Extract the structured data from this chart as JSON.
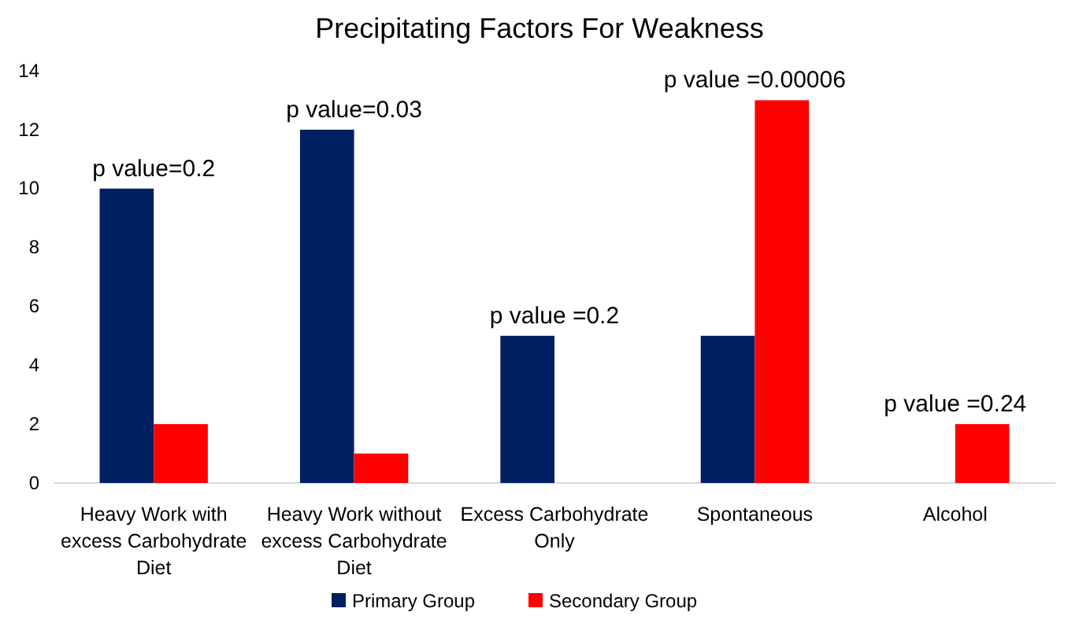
{
  "chart_data": {
    "type": "bar",
    "title": "Precipitating Factors For Weakness",
    "categories": [
      "Heavy Work with excess Carbohydrate Diet",
      "Heavy Work without excess Carbohydrate Diet",
      "Excess Carbohydrate Only",
      "Spontaneous",
      "Alcohol"
    ],
    "series": [
      {
        "name": "Primary Group",
        "color": "#002060",
        "values": [
          10,
          12,
          5,
          5,
          null
        ]
      },
      {
        "name": "Secondary Group",
        "color": "#ff0000",
        "values": [
          2,
          1,
          null,
          13,
          2
        ]
      }
    ],
    "ylim": [
      0,
      14
    ],
    "yticks": [
      0,
      2,
      4,
      6,
      8,
      10,
      12,
      14
    ],
    "grid": false,
    "legend": "bottom",
    "annotations": [
      {
        "text": "p value=0.2",
        "x": "Heavy Work with excess Carbohydrate Diet",
        "y": 10
      },
      {
        "text": "p value=0.03",
        "x": "Heavy Work without excess Carbohydrate Diet",
        "y": 12
      },
      {
        "text": "p value =0.2",
        "x": "Excess Carbohydrate Only",
        "y": 5
      },
      {
        "text": "p value =0.00006",
        "x": "Spontaneous",
        "y": 13
      },
      {
        "text": "p value =0.24",
        "x": "Alcohol",
        "y": 2
      }
    ]
  }
}
